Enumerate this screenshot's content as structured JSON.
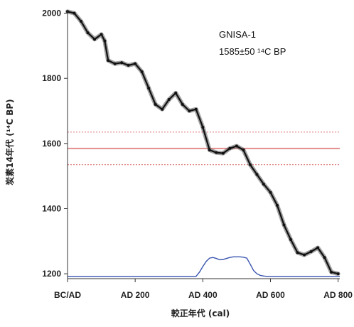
{
  "chart_data": {
    "type": "line",
    "xlabel": "較正年代 (cal)",
    "ylabel": "炭素14年代 (¹⁴C BP)",
    "xlim": [
      0,
      805
    ],
    "ylim": [
      1185,
      2010
    ],
    "x_tick_labels": [
      "BC/AD",
      "AD 200",
      "AD 400",
      "AD 600",
      "AD 800"
    ],
    "x_tick_values": [
      0,
      200,
      400,
      600,
      800
    ],
    "y_ticks": [
      1200,
      1400,
      1600,
      1800,
      2000
    ],
    "sample_label": "GNISA-1",
    "date_label": "1585±50 ¹⁴C BP",
    "grid": false,
    "colors": {
      "calibration_curve": "#111111",
      "measured_line": "#e08080",
      "probability": "#3a55b0"
    },
    "series": [
      {
        "type": "line",
        "x": [
          0,
          20,
          40,
          60,
          80,
          100,
          110,
          120,
          140,
          160,
          180,
          200,
          220,
          240,
          260,
          280,
          300,
          320,
          340,
          360,
          380,
          400,
          420,
          440,
          460,
          480,
          500,
          520,
          540,
          560,
          580,
          600,
          620,
          640,
          660,
          680,
          700,
          720,
          740,
          760,
          780,
          800
        ],
        "y": [
          2005,
          2000,
          1975,
          1940,
          1920,
          1935,
          1915,
          1855,
          1845,
          1848,
          1840,
          1845,
          1820,
          1770,
          1720,
          1705,
          1735,
          1755,
          1720,
          1700,
          1705,
          1650,
          1580,
          1572,
          1570,
          1585,
          1592,
          1580,
          1535,
          1505,
          1475,
          1450,
          1410,
          1350,
          1305,
          1265,
          1258,
          1268,
          1280,
          1250,
          1205,
          1200
        ]
      },
      {
        "type": "horizontal_lines",
        "values": [
          1635,
          1585,
          1535
        ],
        "styles": [
          "dotted",
          "solid",
          "dotted"
        ]
      },
      {
        "type": "probability_distribution",
        "x": [
          0,
          380,
          390,
          400,
          410,
          420,
          430,
          440,
          450,
          460,
          470,
          480,
          490,
          500,
          510,
          520,
          530,
          540,
          550,
          560,
          570,
          580,
          590,
          600,
          805
        ],
        "y": [
          1192,
          1192,
          1205,
          1222,
          1238,
          1248,
          1250,
          1247,
          1243,
          1244,
          1247,
          1250,
          1252,
          1252,
          1252,
          1251,
          1248,
          1230,
          1210,
          1200,
          1195,
          1193,
          1192,
          1192,
          1192
        ]
      }
    ]
  }
}
